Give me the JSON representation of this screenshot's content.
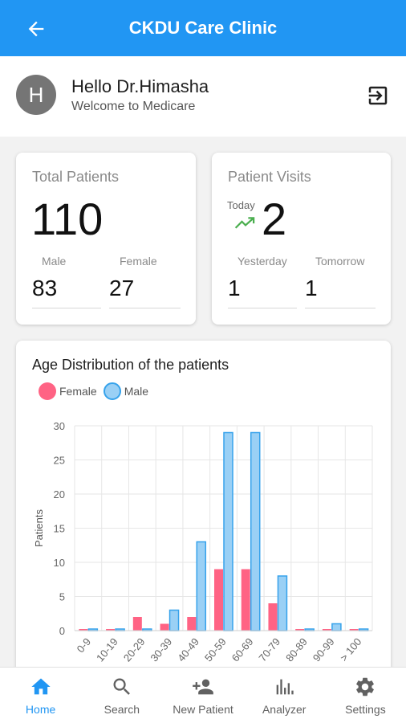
{
  "appbar": {
    "title": "CKDU Care Clinic",
    "back_icon": "arrow-back-icon"
  },
  "header": {
    "avatar_letter": "H",
    "greeting": "Hello Dr.Himasha",
    "subtitle": "Welcome to Medicare",
    "logout_icon": "logout-icon"
  },
  "total_patients": {
    "title": "Total Patients",
    "value": "110",
    "male_label": "Male",
    "male_value": "83",
    "female_label": "Female",
    "female_value": "27"
  },
  "patient_visits": {
    "title": "Patient Visits",
    "today_label": "Today",
    "today_value": "2",
    "yesterday_label": "Yesterday",
    "yesterday_value": "1",
    "tomorrow_label": "Tomorrow",
    "tomorrow_value": "1",
    "trend_icon": "trending-up-icon",
    "trend_color": "#4caf50"
  },
  "chart_data": {
    "type": "bar",
    "title": "Age Distribution of the patients",
    "ylabel": "Patients",
    "xlabel": "",
    "ylim": [
      0,
      30
    ],
    "yticks": [
      0,
      5,
      10,
      15,
      20,
      25,
      30
    ],
    "categories": [
      "0-9",
      "10-19",
      "20-29",
      "30-39",
      "40-49",
      "50-59",
      "60-69",
      "70-79",
      "80-89",
      "90-99",
      "> 100"
    ],
    "series": [
      {
        "name": "Female",
        "color": "#ff6384",
        "values": [
          0,
          0,
          2,
          1,
          2,
          9,
          9,
          4,
          0,
          0,
          0
        ]
      },
      {
        "name": "Male",
        "color": "#36a2eb",
        "fill": "#9ad0f5",
        "values": [
          0,
          0,
          0,
          3,
          13,
          29,
          29,
          8,
          0,
          1,
          0
        ]
      }
    ],
    "grid": true,
    "legend": "top-left"
  },
  "nav": {
    "items": [
      {
        "label": "Home",
        "icon": "home-icon",
        "active": true
      },
      {
        "label": "Search",
        "icon": "search-icon",
        "active": false
      },
      {
        "label": "New Patient",
        "icon": "person-add-icon",
        "active": false
      },
      {
        "label": "Analyzer",
        "icon": "analytics-icon",
        "active": false
      },
      {
        "label": "Settings",
        "icon": "gear-icon",
        "active": false
      }
    ]
  },
  "colors": {
    "primary": "#2196f3",
    "avatar": "#757575"
  }
}
